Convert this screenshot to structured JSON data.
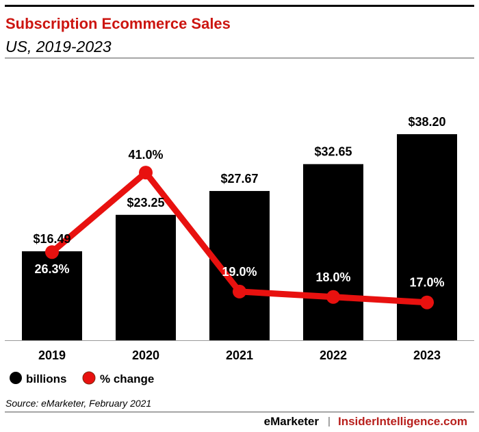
{
  "header": {
    "title": "Subscription Ecommerce Sales",
    "subtitle": "US, 2019-2023"
  },
  "colors": {
    "bar": "#000000",
    "line": "#e8110f",
    "title": "#cc1510",
    "brand": "#b81f1c"
  },
  "chart_data": {
    "type": "bar+line",
    "title": "Subscription Ecommerce Sales",
    "subtitle": "US, 2019-2023",
    "categories": [
      "2019",
      "2020",
      "2021",
      "2022",
      "2023"
    ],
    "series": [
      {
        "name": "billions",
        "type": "bar",
        "values": [
          16.49,
          23.25,
          27.67,
          32.65,
          38.2
        ],
        "labels": [
          "$16.49",
          "$23.25",
          "$27.67",
          "$32.65",
          "$38.20"
        ]
      },
      {
        "name": "% change",
        "type": "line",
        "values": [
          26.3,
          41.0,
          19.0,
          18.0,
          17.0
        ],
        "labels": [
          "26.3%",
          "41.0%",
          "19.0%",
          "18.0%",
          "17.0%"
        ]
      }
    ],
    "grid": false,
    "legend": "bottom-left"
  },
  "legend": [
    "billions",
    "% change"
  ],
  "footer": {
    "source": "Source: eMarketer, February 2021",
    "brand1": "eMarketer",
    "separator": "|",
    "brand2": "InsiderIntelligence.com"
  }
}
